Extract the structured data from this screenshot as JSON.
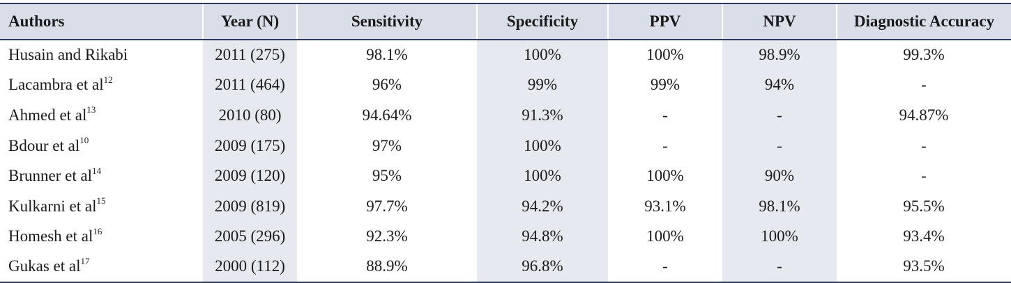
{
  "table": {
    "headers": [
      "Authors",
      "Year (N)",
      "Sensitivity",
      "Specificity",
      "PPV",
      "NPV",
      "Diagnostic Accuracy"
    ],
    "rows": [
      {
        "author": "Husain and Rikabi",
        "ref": "",
        "year": "2011 (275)",
        "sensitivity": "98.1%",
        "specificity": "100%",
        "ppv": "100%",
        "npv": "98.9%",
        "accuracy": "99.3%"
      },
      {
        "author": "Lacambra et al",
        "ref": "12",
        "year": "2011 (464)",
        "sensitivity": "96%",
        "specificity": "99%",
        "ppv": "99%",
        "npv": "94%",
        "accuracy": "-"
      },
      {
        "author": "Ahmed et al",
        "ref": "13",
        "year": "2010 (80)",
        "sensitivity": "94.64%",
        "specificity": "91.3%",
        "ppv": "-",
        "npv": "-",
        "accuracy": "94.87%"
      },
      {
        "author": "Bdour et al",
        "ref": "10",
        "year": "2009 (175)",
        "sensitivity": "97%",
        "specificity": "100%",
        "ppv": "-",
        "npv": "-",
        "accuracy": "-"
      },
      {
        "author": "Brunner et al",
        "ref": "14",
        "year": "2009 (120)",
        "sensitivity": "95%",
        "specificity": "100%",
        "ppv": "100%",
        "npv": "90%",
        "accuracy": "-"
      },
      {
        "author": "Kulkarni et al",
        "ref": "15",
        "year": "2009 (819)",
        "sensitivity": "97.7%",
        "specificity": "94.2%",
        "ppv": "93.1%",
        "npv": "98.1%",
        "accuracy": "95.5%"
      },
      {
        "author": "Homesh et al",
        "ref": "16",
        "year": "2005 (296)",
        "sensitivity": "92.3%",
        "specificity": "94.8%",
        "ppv": "100%",
        "npv": "100%",
        "accuracy": "93.4%"
      },
      {
        "author": "Gukas et al",
        "ref": "17",
        "year": "2000 (112)",
        "sensitivity": "88.9%",
        "specificity": "96.8%",
        "ppv": "-",
        "npv": "-",
        "accuracy": "93.5%"
      }
    ]
  },
  "colors": {
    "header_bg": "#d9dee8",
    "shaded_column_bg": "#e6e9f0",
    "rule": "#2b3a5c"
  }
}
